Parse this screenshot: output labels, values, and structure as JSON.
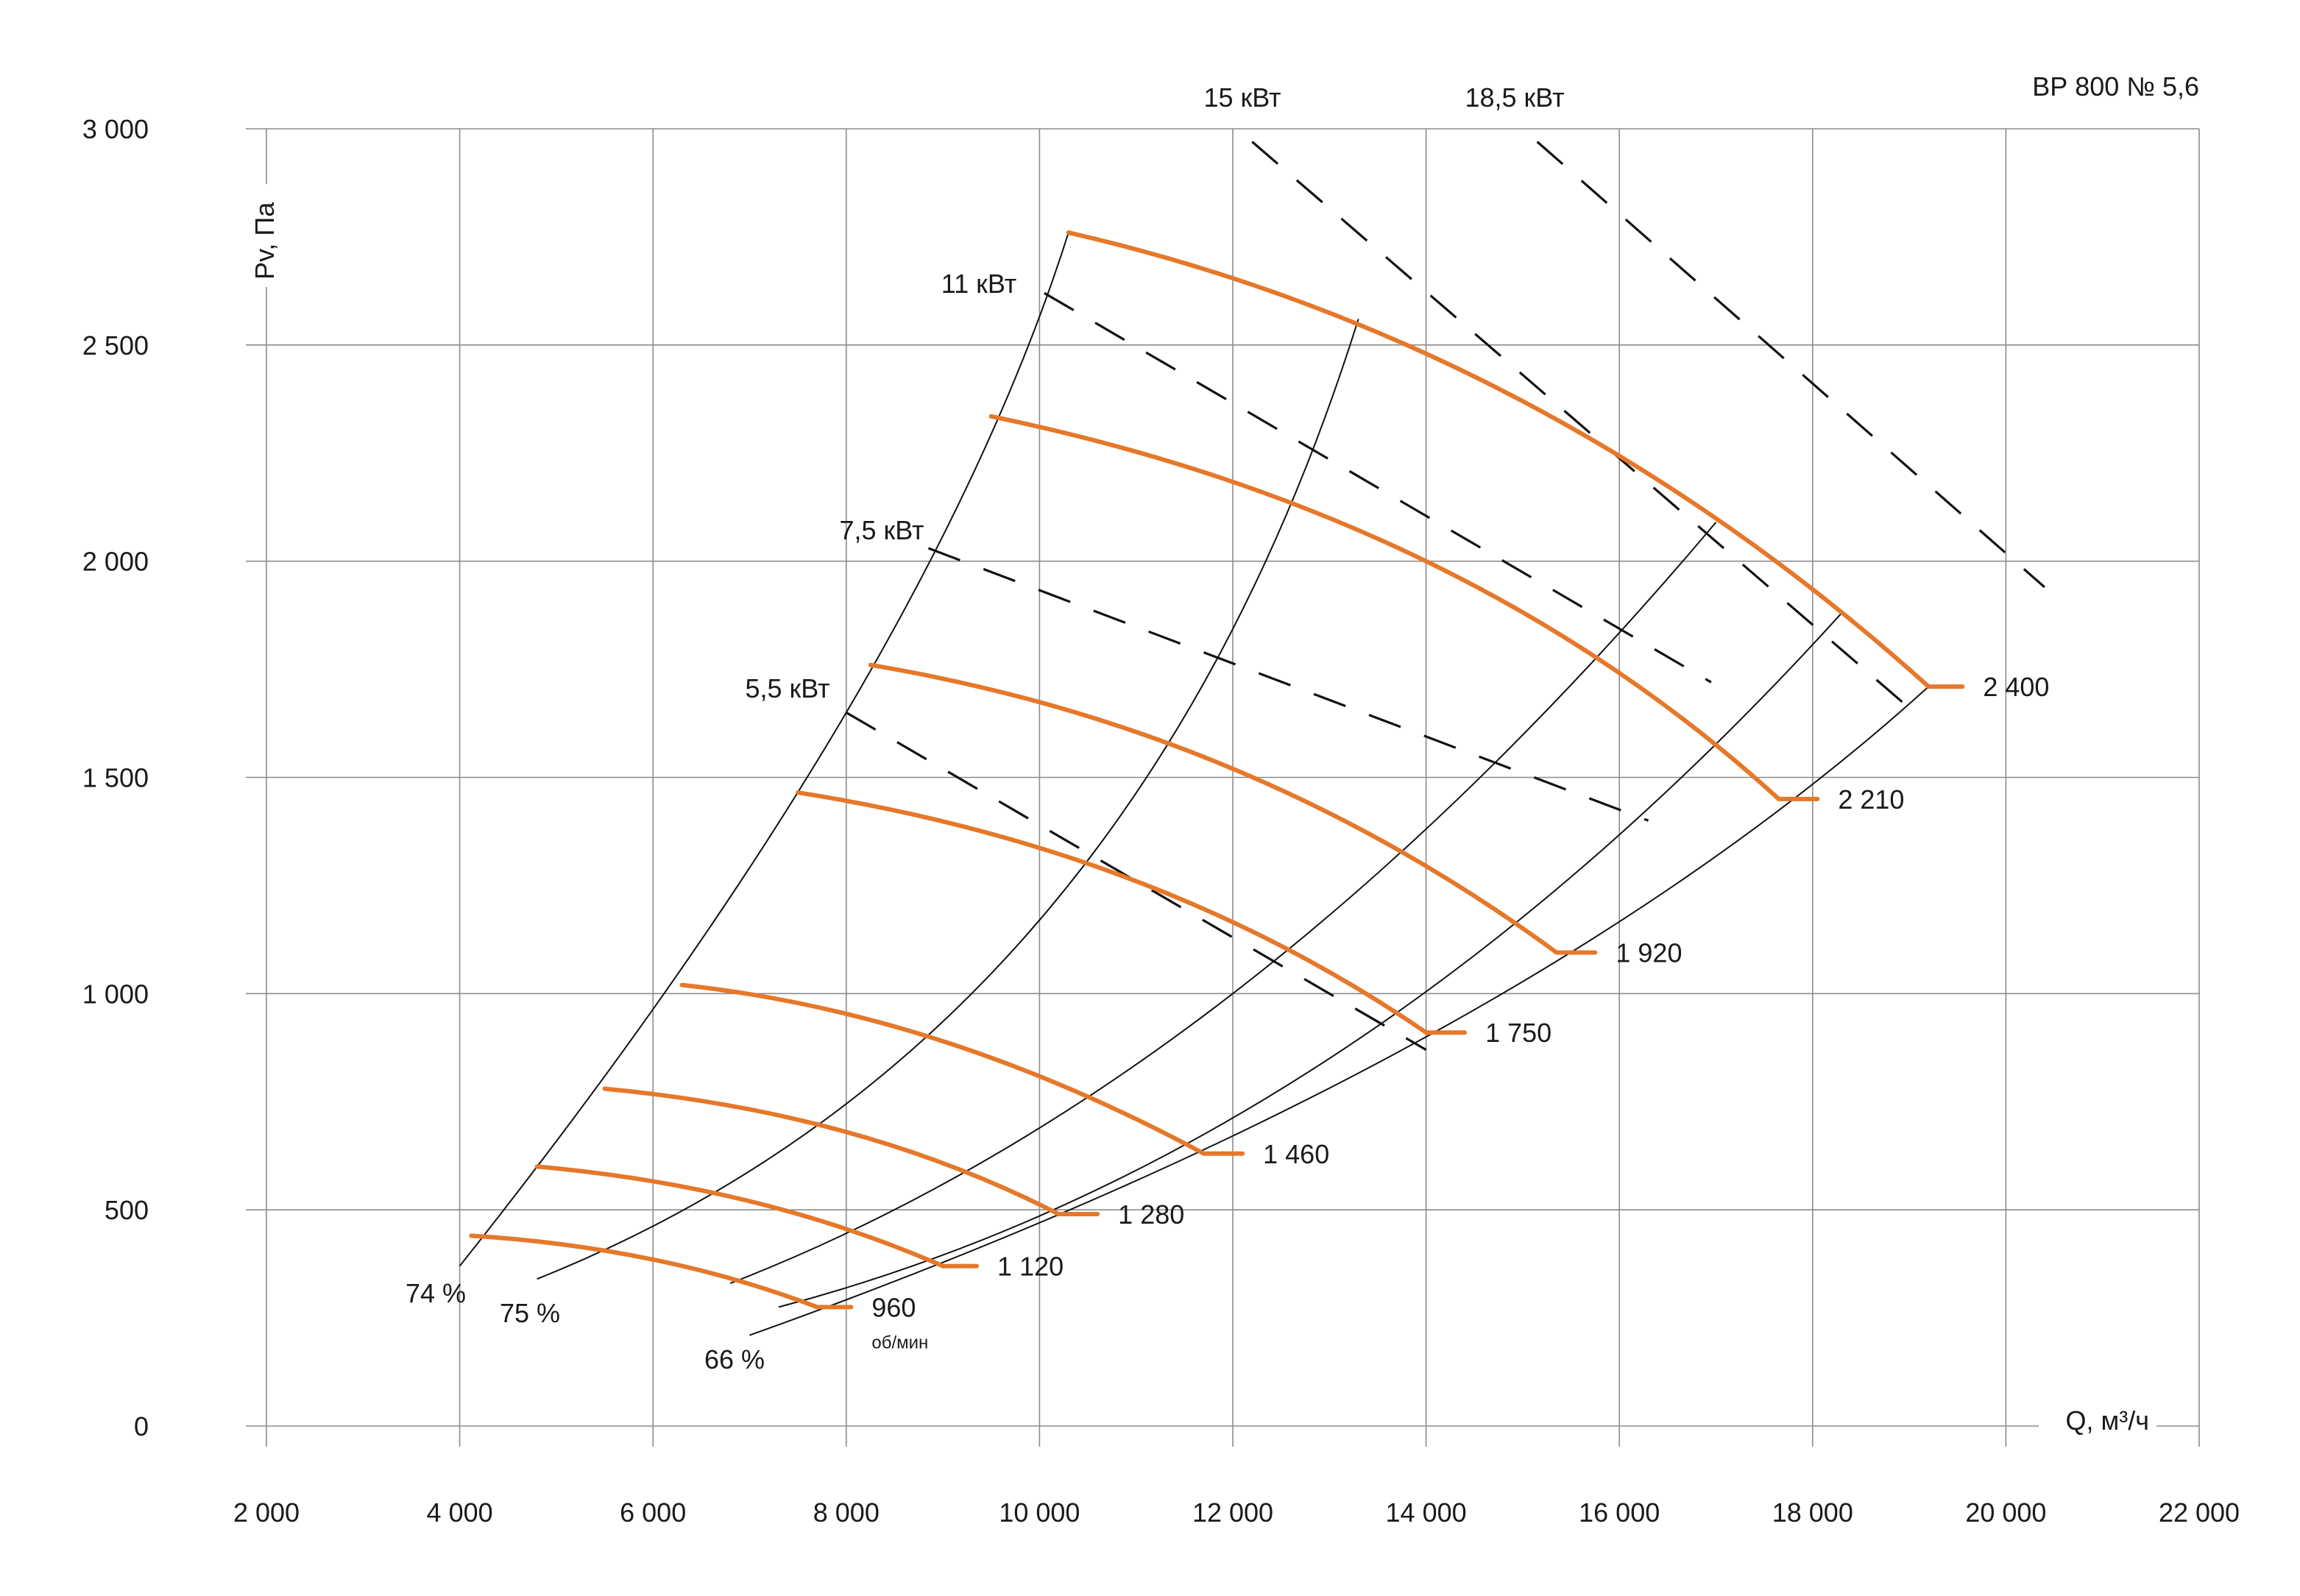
{
  "chart_data": {
    "type": "line",
    "title": "ВР 800 № 5,6",
    "xlabel": "Q, м³/ч",
    "ylabel": "Pv, Па",
    "xlim": [
      2000,
      22000
    ],
    "ylim": [
      0,
      3000
    ],
    "x_ticks": [
      {
        "v": 2000,
        "label": "2 000"
      },
      {
        "v": 4000,
        "label": "4 000"
      },
      {
        "v": 6000,
        "label": "6 000"
      },
      {
        "v": 8000,
        "label": "8 000"
      },
      {
        "v": 10000,
        "label": "10 000"
      },
      {
        "v": 12000,
        "label": "12 000"
      },
      {
        "v": 14000,
        "label": "14 000"
      },
      {
        "v": 16000,
        "label": "16 000"
      },
      {
        "v": 18000,
        "label": "18 000"
      },
      {
        "v": 20000,
        "label": "20 000"
      },
      {
        "v": 22000,
        "label": "22 000"
      }
    ],
    "y_ticks": [
      {
        "v": 0,
        "label": "0"
      },
      {
        "v": 500,
        "label": "500"
      },
      {
        "v": 1000,
        "label": "1 000"
      },
      {
        "v": 1500,
        "label": "1 500"
      },
      {
        "v": 2000,
        "label": "2 000"
      },
      {
        "v": 2500,
        "label": "2 500"
      },
      {
        "v": 3000,
        "label": "3 000"
      }
    ],
    "grid": true,
    "colors": {
      "curve": "#e5782a",
      "grid": "#8c8c8c",
      "lines": "#111111"
    },
    "rpm_unit": "об/мин",
    "series": [
      {
        "name": "960",
        "x": [
          4120,
          6000,
          7700
        ],
        "y": [
          440,
          385,
          275
        ],
        "tail_x": 8050
      },
      {
        "name": "1 120",
        "x": [
          4800,
          7000,
          9000
        ],
        "y": [
          600,
          520,
          370
        ],
        "tail_x": 9350
      },
      {
        "name": "1 280",
        "x": [
          5500,
          8000,
          10200
        ],
        "y": [
          780,
          680,
          490
        ],
        "tail_x": 10600
      },
      {
        "name": "1 460",
        "x": [
          6300,
          9000,
          11700
        ],
        "y": [
          1020,
          890,
          630
        ],
        "tail_x": 12100
      },
      {
        "name": "1 750",
        "x": [
          7500,
          11000,
          14000
        ],
        "y": [
          1465,
          1260,
          910
        ],
        "tail_x": 14400
      },
      {
        "name": "1 920",
        "x": [
          8250,
          12000,
          15350
        ],
        "y": [
          1760,
          1520,
          1095
        ],
        "tail_x": 15750
      },
      {
        "name": "2 210",
        "x": [
          9500,
          14000,
          17650
        ],
        "y": [
          2335,
          2000,
          1450
        ],
        "tail_x": 18050
      },
      {
        "name": "2 400",
        "x": [
          10300,
          15000,
          19200
        ],
        "y": [
          2760,
          2370,
          1710
        ],
        "tail_x": 19550
      }
    ],
    "efficiency_lines": [
      {
        "label": "74 %",
        "x": [
          4000,
          8000,
          10300
        ],
        "y": [
          370,
          1650,
          2760
        ]
      },
      {
        "label": "75 %",
        "x": [
          4800,
          10000,
          13300
        ],
        "y": [
          340,
          1170,
          2560
        ]
      },
      {
        "label": "",
        "x": [
          6800,
          12000,
          17000
        ],
        "y": [
          330,
          1000,
          2090
        ]
      },
      {
        "label": "66 %",
        "x": [
          7300,
          13000,
          18300
        ],
        "y": [
          275,
          850,
          1880
        ]
      },
      {
        "label": "",
        "x": [
          7000,
          14000,
          19200
        ],
        "y": [
          210,
          900,
          1710
        ]
      }
    ],
    "power_lines": [
      {
        "label": "5,5 кВт",
        "x": [
          8000,
          14000
        ],
        "y": [
          1650,
          870
        ]
      },
      {
        "label": "7,5 кВт",
        "x": [
          8850,
          16300
        ],
        "y": [
          2030,
          1400
        ]
      },
      {
        "label": "11 кВт",
        "x": [
          10050,
          16950
        ],
        "y": [
          2620,
          1720
        ]
      },
      {
        "label": "15 кВт",
        "x": [
          12200,
          18950
        ],
        "y": [
          2970,
          1670
        ]
      },
      {
        "label": "18,5 кВт",
        "x": [
          15150,
          20400
        ],
        "y": [
          2970,
          1940
        ]
      }
    ]
  }
}
